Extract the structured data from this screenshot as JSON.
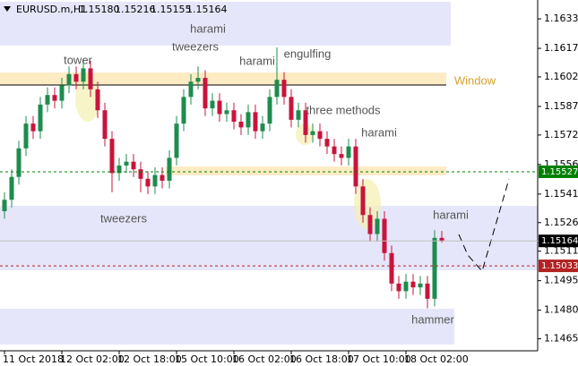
{
  "chart_data": {
    "type": "candlestick",
    "title": "EURUSD.m,H1",
    "quote": [
      "1.15180",
      "1.15216",
      "1.15155",
      "1.15164"
    ],
    "categories": [
      "11 Oct 2018",
      null,
      null,
      null,
      null,
      null,
      null,
      null,
      "12 Oct 02:00",
      null,
      null,
      null,
      null,
      null,
      null,
      null,
      "12 Oct 18:00",
      null,
      null,
      null,
      null,
      null,
      null,
      null,
      "15 Oct 10:00",
      null,
      null,
      null,
      null,
      null,
      null,
      null,
      "16 Oct 02:00",
      null,
      null,
      null,
      null,
      null,
      null,
      null,
      "16 Oct 18:00",
      null,
      null,
      null,
      null,
      null,
      null,
      null,
      "17 Oct 10:00",
      null,
      null,
      null,
      null,
      null,
      null,
      null,
      "18 Oct 02:00",
      null,
      null,
      null,
      null,
      null
    ],
    "open": [
      1.1532,
      1.1538,
      1.155,
      1.1565,
      1.1578,
      1.1574,
      1.1588,
      1.1593,
      1.159,
      1.1598,
      1.1604,
      1.16,
      1.1607,
      1.1596,
      1.1585,
      1.157,
      1.1552,
      1.1556,
      1.1558,
      1.1554,
      1.1549,
      1.1545,
      1.1551,
      1.1548,
      1.156,
      1.1578,
      1.1592,
      1.16,
      1.1602,
      1.1586,
      1.159,
      1.1583,
      1.1585,
      1.1579,
      1.1576,
      1.1584,
      1.1574,
      1.1578,
      1.1592,
      1.1601,
      1.1592,
      1.158,
      1.1585,
      1.1572,
      1.1574,
      1.157,
      1.1566,
      1.1562,
      1.156,
      1.1566,
      1.1545,
      1.153,
      1.152,
      1.1528,
      1.151,
      1.1494,
      1.149,
      1.1495,
      1.1492,
      1.1494,
      1.1486,
      1.1518
    ],
    "high": [
      1.1542,
      1.1554,
      1.1569,
      1.1582,
      1.1582,
      1.1592,
      1.1597,
      1.1597,
      1.1602,
      1.1608,
      1.1608,
      1.1612,
      1.1611,
      1.16,
      1.1589,
      1.1574,
      1.156,
      1.1562,
      1.1562,
      1.1558,
      1.1553,
      1.1555,
      1.1555,
      1.1564,
      1.1582,
      1.1596,
      1.1604,
      1.1608,
      1.1606,
      1.1594,
      1.1594,
      1.1589,
      1.1589,
      1.1583,
      1.1588,
      1.1588,
      1.1582,
      1.1596,
      1.1618,
      1.1605,
      1.1596,
      1.1589,
      1.1589,
      1.1578,
      1.1578,
      1.1574,
      1.157,
      1.1566,
      1.157,
      1.157,
      1.1549,
      1.1534,
      1.1532,
      1.1532,
      1.1514,
      1.1498,
      1.1499,
      1.1499,
      1.1498,
      1.1498,
      1.1522,
      1.15216
    ],
    "low": [
      1.1528,
      1.1534,
      1.1546,
      1.1561,
      1.157,
      1.157,
      1.1584,
      1.1586,
      1.1586,
      1.1594,
      1.1596,
      1.1596,
      1.1592,
      1.1581,
      1.1566,
      1.1542,
      1.1548,
      1.1552,
      1.155,
      1.1542,
      1.1541,
      1.1541,
      1.1544,
      1.1544,
      1.1556,
      1.1574,
      1.1588,
      1.1596,
      1.1582,
      1.1582,
      1.1579,
      1.1579,
      1.1575,
      1.1572,
      1.1572,
      1.157,
      1.157,
      1.1574,
      1.1588,
      1.1588,
      1.1576,
      1.1576,
      1.1568,
      1.1568,
      1.1566,
      1.1562,
      1.1558,
      1.1556,
      1.1556,
      1.1541,
      1.1526,
      1.1516,
      1.1516,
      1.1506,
      1.149,
      1.1486,
      1.1486,
      1.1488,
      1.1488,
      1.1481,
      1.1482,
      1.15155
    ],
    "close": [
      1.1538,
      1.155,
      1.1565,
      1.1578,
      1.1574,
      1.1588,
      1.1593,
      1.159,
      1.1598,
      1.1604,
      1.16,
      1.1607,
      1.1596,
      1.1585,
      1.157,
      1.1552,
      1.1556,
      1.1558,
      1.1554,
      1.1549,
      1.1545,
      1.1551,
      1.1548,
      1.156,
      1.1578,
      1.1592,
      1.16,
      1.1602,
      1.1586,
      1.159,
      1.1583,
      1.1585,
      1.1579,
      1.1576,
      1.1584,
      1.1574,
      1.1578,
      1.1592,
      1.1601,
      1.1592,
      1.158,
      1.1585,
      1.1572,
      1.1574,
      1.157,
      1.1566,
      1.1562,
      1.156,
      1.1566,
      1.1545,
      1.153,
      1.152,
      1.1528,
      1.151,
      1.1494,
      1.149,
      1.1495,
      1.1492,
      1.1494,
      1.1486,
      1.1518,
      1.15164
    ],
    "up_color": "#1e8c4e",
    "down_color": "#c8143c",
    "ylim": [
      1.14587,
      1.16429
    ],
    "yticks": [
      {
        "value": 1.1633,
        "label": "1.16330"
      },
      1.16175,
      1.16025,
      {
        "value": 1.1587,
        "label": "1.15870"
      },
      {
        "value": 1.1572,
        "label": "1.15720"
      },
      1.15565,
      {
        "value": 1.1541,
        "label": "1.15410"
      },
      {
        "value": 1.1526,
        "label": "1.15260"
      },
      {
        "value": 1.1511,
        "label": "1.15110"
      },
      1.14955,
      {
        "value": 1.148,
        "label": "1.14800"
      },
      {
        "value": 1.1465,
        "label": "1.14650"
      }
    ],
    "levels": [
      {
        "value": 1.15527,
        "color": "#008000",
        "style": "dashed"
      },
      {
        "value": 1.15033,
        "color": "#b22222",
        "style": "dashed"
      },
      {
        "value": 1.15164,
        "color": "#c0c0c0",
        "style": "solid"
      }
    ],
    "zones": [
      {
        "from": 1.1642,
        "to": 1.1619,
        "color": "#e6e6fa"
      },
      {
        "from": 1.16048,
        "to": 1.15982,
        "color": "#fdebc4"
      },
      {
        "from": 1.15555,
        "to": 1.15508,
        "color": "#fdebc4"
      },
      {
        "from": 1.15348,
        "to": 1.1501,
        "color": "#e6e6fa"
      },
      {
        "from": 1.14808,
        "to": 1.1462,
        "color": "#e6e6fa"
      }
    ],
    "annotations": [
      "harami",
      "tower",
      "tweezers",
      "harami",
      "engulfing",
      "Window",
      "three methods",
      "harami",
      "tweezers",
      "harami",
      "hammer"
    ]
  }
}
